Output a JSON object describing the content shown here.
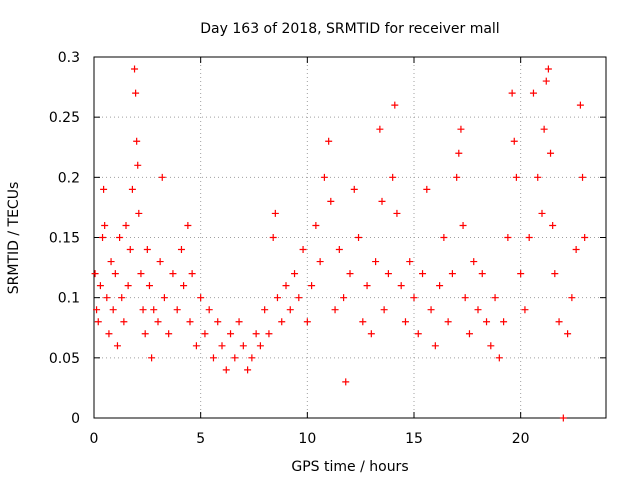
{
  "chart_data": {
    "type": "scatter",
    "title": "Day 163 of 2018, SRMTID for receiver mall",
    "xlabel": "GPS time / hours",
    "ylabel": "SRMTID / TECUs",
    "xlim": [
      0,
      24
    ],
    "ylim": [
      0,
      0.3
    ],
    "xticks": [
      0,
      5,
      10,
      15,
      20
    ],
    "yticks": [
      0,
      0.05,
      0.1,
      0.15,
      0.2,
      0.25,
      0.3
    ],
    "xtick_labels": [
      "0",
      "5",
      "10",
      "15",
      "20"
    ],
    "ytick_labels": [
      "0",
      "0.05",
      "0.1",
      "0.15",
      "0.2",
      "0.25",
      "0.3"
    ],
    "grid": true,
    "marker": "+",
    "color": "#ff0000",
    "series": [
      {
        "values": [
          [
            0.05,
            0.12
          ],
          [
            0.12,
            0.09
          ],
          [
            0.2,
            0.08
          ],
          [
            0.3,
            0.11
          ],
          [
            0.4,
            0.15
          ],
          [
            0.45,
            0.19
          ],
          [
            0.5,
            0.16
          ],
          [
            0.6,
            0.1
          ],
          [
            0.7,
            0.07
          ],
          [
            0.8,
            0.13
          ],
          [
            0.9,
            0.09
          ],
          [
            1.0,
            0.12
          ],
          [
            1.1,
            0.06
          ],
          [
            1.2,
            0.15
          ],
          [
            1.3,
            0.1
          ],
          [
            1.4,
            0.08
          ],
          [
            1.5,
            0.16
          ],
          [
            1.6,
            0.11
          ],
          [
            1.7,
            0.14
          ],
          [
            1.8,
            0.19
          ],
          [
            1.9,
            0.29
          ],
          [
            1.95,
            0.27
          ],
          [
            2.0,
            0.23
          ],
          [
            2.05,
            0.21
          ],
          [
            2.1,
            0.17
          ],
          [
            2.2,
            0.12
          ],
          [
            2.3,
            0.09
          ],
          [
            2.4,
            0.07
          ],
          [
            2.5,
            0.14
          ],
          [
            2.6,
            0.11
          ],
          [
            2.7,
            0.05
          ],
          [
            2.8,
            0.09
          ],
          [
            3.0,
            0.08
          ],
          [
            3.1,
            0.13
          ],
          [
            3.2,
            0.2
          ],
          [
            3.3,
            0.1
          ],
          [
            3.5,
            0.07
          ],
          [
            3.7,
            0.12
          ],
          [
            3.9,
            0.09
          ],
          [
            4.1,
            0.14
          ],
          [
            4.2,
            0.11
          ],
          [
            4.4,
            0.16
          ],
          [
            4.5,
            0.08
          ],
          [
            4.6,
            0.12
          ],
          [
            4.8,
            0.06
          ],
          [
            5.0,
            0.1
          ],
          [
            5.2,
            0.07
          ],
          [
            5.4,
            0.09
          ],
          [
            5.6,
            0.05
          ],
          [
            5.8,
            0.08
          ],
          [
            6.0,
            0.06
          ],
          [
            6.2,
            0.04
          ],
          [
            6.4,
            0.07
          ],
          [
            6.6,
            0.05
          ],
          [
            6.8,
            0.08
          ],
          [
            7.0,
            0.06
          ],
          [
            7.2,
            0.04
          ],
          [
            7.4,
            0.05
          ],
          [
            7.6,
            0.07
          ],
          [
            7.8,
            0.06
          ],
          [
            8.0,
            0.09
          ],
          [
            8.2,
            0.07
          ],
          [
            8.4,
            0.15
          ],
          [
            8.5,
            0.17
          ],
          [
            8.6,
            0.1
          ],
          [
            8.8,
            0.08
          ],
          [
            9.0,
            0.11
          ],
          [
            9.2,
            0.09
          ],
          [
            9.4,
            0.12
          ],
          [
            9.6,
            0.1
          ],
          [
            9.8,
            0.14
          ],
          [
            10.0,
            0.08
          ],
          [
            10.2,
            0.11
          ],
          [
            10.4,
            0.16
          ],
          [
            10.6,
            0.13
          ],
          [
            10.8,
            0.2
          ],
          [
            11.0,
            0.23
          ],
          [
            11.1,
            0.18
          ],
          [
            11.3,
            0.09
          ],
          [
            11.5,
            0.14
          ],
          [
            11.7,
            0.1
          ],
          [
            11.8,
            0.03
          ],
          [
            12.0,
            0.12
          ],
          [
            12.2,
            0.19
          ],
          [
            12.4,
            0.15
          ],
          [
            12.6,
            0.08
          ],
          [
            12.8,
            0.11
          ],
          [
            13.0,
            0.07
          ],
          [
            13.2,
            0.13
          ],
          [
            13.4,
            0.24
          ],
          [
            13.5,
            0.18
          ],
          [
            13.6,
            0.09
          ],
          [
            13.8,
            0.12
          ],
          [
            14.0,
            0.2
          ],
          [
            14.1,
            0.26
          ],
          [
            14.2,
            0.17
          ],
          [
            14.4,
            0.11
          ],
          [
            14.6,
            0.08
          ],
          [
            14.8,
            0.13
          ],
          [
            15.0,
            0.1
          ],
          [
            15.2,
            0.07
          ],
          [
            15.4,
            0.12
          ],
          [
            15.6,
            0.19
          ],
          [
            15.8,
            0.09
          ],
          [
            16.0,
            0.06
          ],
          [
            16.2,
            0.11
          ],
          [
            16.4,
            0.15
          ],
          [
            16.6,
            0.08
          ],
          [
            16.8,
            0.12
          ],
          [
            17.0,
            0.2
          ],
          [
            17.1,
            0.22
          ],
          [
            17.2,
            0.24
          ],
          [
            17.3,
            0.16
          ],
          [
            17.4,
            0.1
          ],
          [
            17.6,
            0.07
          ],
          [
            17.8,
            0.13
          ],
          [
            18.0,
            0.09
          ],
          [
            18.2,
            0.12
          ],
          [
            18.4,
            0.08
          ],
          [
            18.6,
            0.06
          ],
          [
            18.8,
            0.1
          ],
          [
            19.0,
            0.05
          ],
          [
            19.2,
            0.08
          ],
          [
            19.4,
            0.15
          ],
          [
            19.6,
            0.27
          ],
          [
            19.7,
            0.23
          ],
          [
            19.8,
            0.2
          ],
          [
            20.0,
            0.12
          ],
          [
            20.2,
            0.09
          ],
          [
            20.4,
            0.15
          ],
          [
            20.6,
            0.27
          ],
          [
            20.8,
            0.2
          ],
          [
            21.0,
            0.17
          ],
          [
            21.1,
            0.24
          ],
          [
            21.2,
            0.28
          ],
          [
            21.3,
            0.29
          ],
          [
            21.4,
            0.22
          ],
          [
            21.5,
            0.16
          ],
          [
            21.6,
            0.12
          ],
          [
            21.8,
            0.08
          ],
          [
            22.0,
            0.0
          ],
          [
            22.2,
            0.07
          ],
          [
            22.4,
            0.1
          ],
          [
            22.6,
            0.14
          ],
          [
            22.8,
            0.26
          ],
          [
            22.9,
            0.2
          ],
          [
            23.0,
            0.15
          ]
        ]
      }
    ]
  }
}
